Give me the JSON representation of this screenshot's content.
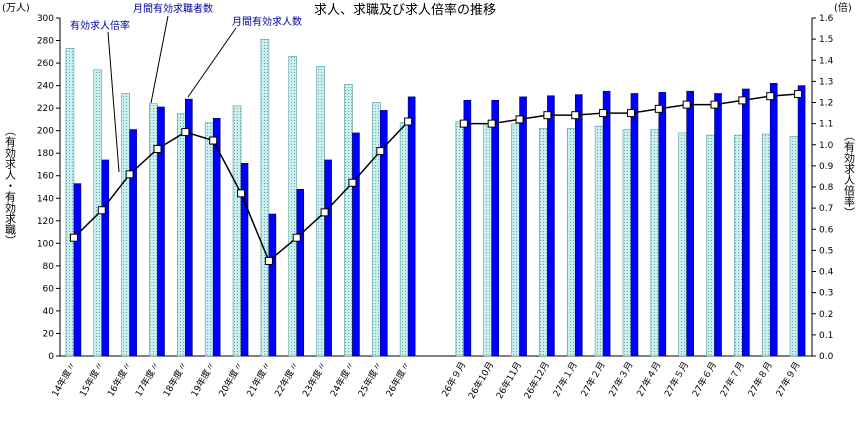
{
  "chart_data": {
    "type": "bar-line",
    "title": "求人、求職及び求人倍率の推移",
    "y_unit": "(万人)",
    "y2_unit": "(倍)",
    "y_label": "（有効求人・有効求職）",
    "y2_label": "（有効求人倍率）",
    "categories": [
      "14年度〃",
      "15年度〃",
      "16年度〃",
      "17年度〃",
      "18年度〃",
      "19年度〃",
      "20年度〃",
      "21年度〃",
      "22年度〃",
      "23年度〃",
      "24年度〃",
      "25年度〃",
      "26年度〃",
      null,
      "26年９月",
      "26年10月",
      "26年11月",
      "26年12月",
      "27年１月",
      "27年２月",
      "27年３月",
      "27年４月",
      "27年５月",
      "27年６月",
      "27年７月",
      "27年８月",
      "27年９月"
    ],
    "series": [
      {
        "name": "月間有効求職者数",
        "kind": "bar",
        "color": "#b3e8e8",
        "values": [
          273,
          254,
          233,
          224,
          215,
          207,
          222,
          281,
          266,
          257,
          241,
          225,
          207,
          null,
          208,
          206,
          206,
          202,
          202,
          204,
          201,
          201,
          198,
          196,
          196,
          197,
          195
        ]
      },
      {
        "name": "月間有効求人数",
        "kind": "bar",
        "color": "#0000ff",
        "values": [
          153,
          174,
          201,
          221,
          228,
          211,
          171,
          126,
          148,
          174,
          198,
          218,
          230,
          null,
          227,
          227,
          230,
          231,
          232,
          235,
          233,
          234,
          235,
          233,
          237,
          242,
          240
        ]
      },
      {
        "name": "有効求人倍率",
        "kind": "line",
        "axis": "y2",
        "color": "#000000",
        "values": [
          0.56,
          0.69,
          0.86,
          0.98,
          1.06,
          1.02,
          0.77,
          0.45,
          0.56,
          0.68,
          0.82,
          0.97,
          1.11,
          null,
          1.1,
          1.1,
          1.12,
          1.14,
          1.14,
          1.15,
          1.15,
          1.17,
          1.19,
          1.19,
          1.21,
          1.23,
          1.24
        ]
      }
    ],
    "ylim": [
      0,
      300
    ],
    "yticks": [
      0,
      20,
      40,
      60,
      80,
      100,
      120,
      140,
      160,
      180,
      200,
      220,
      240,
      260,
      280,
      300
    ],
    "y2lim": [
      0,
      1.6
    ],
    "y2ticks": [
      {
        "value": 0,
        "label": "0.0"
      },
      0.1,
      0.2,
      0.3,
      0.4,
      0.5,
      0.6,
      0.7,
      0.8,
      0.9,
      {
        "value": 1,
        "label": "1.0"
      },
      1.1,
      1.2,
      1.3,
      1.4,
      1.5,
      1.6
    ],
    "grid": false
  }
}
